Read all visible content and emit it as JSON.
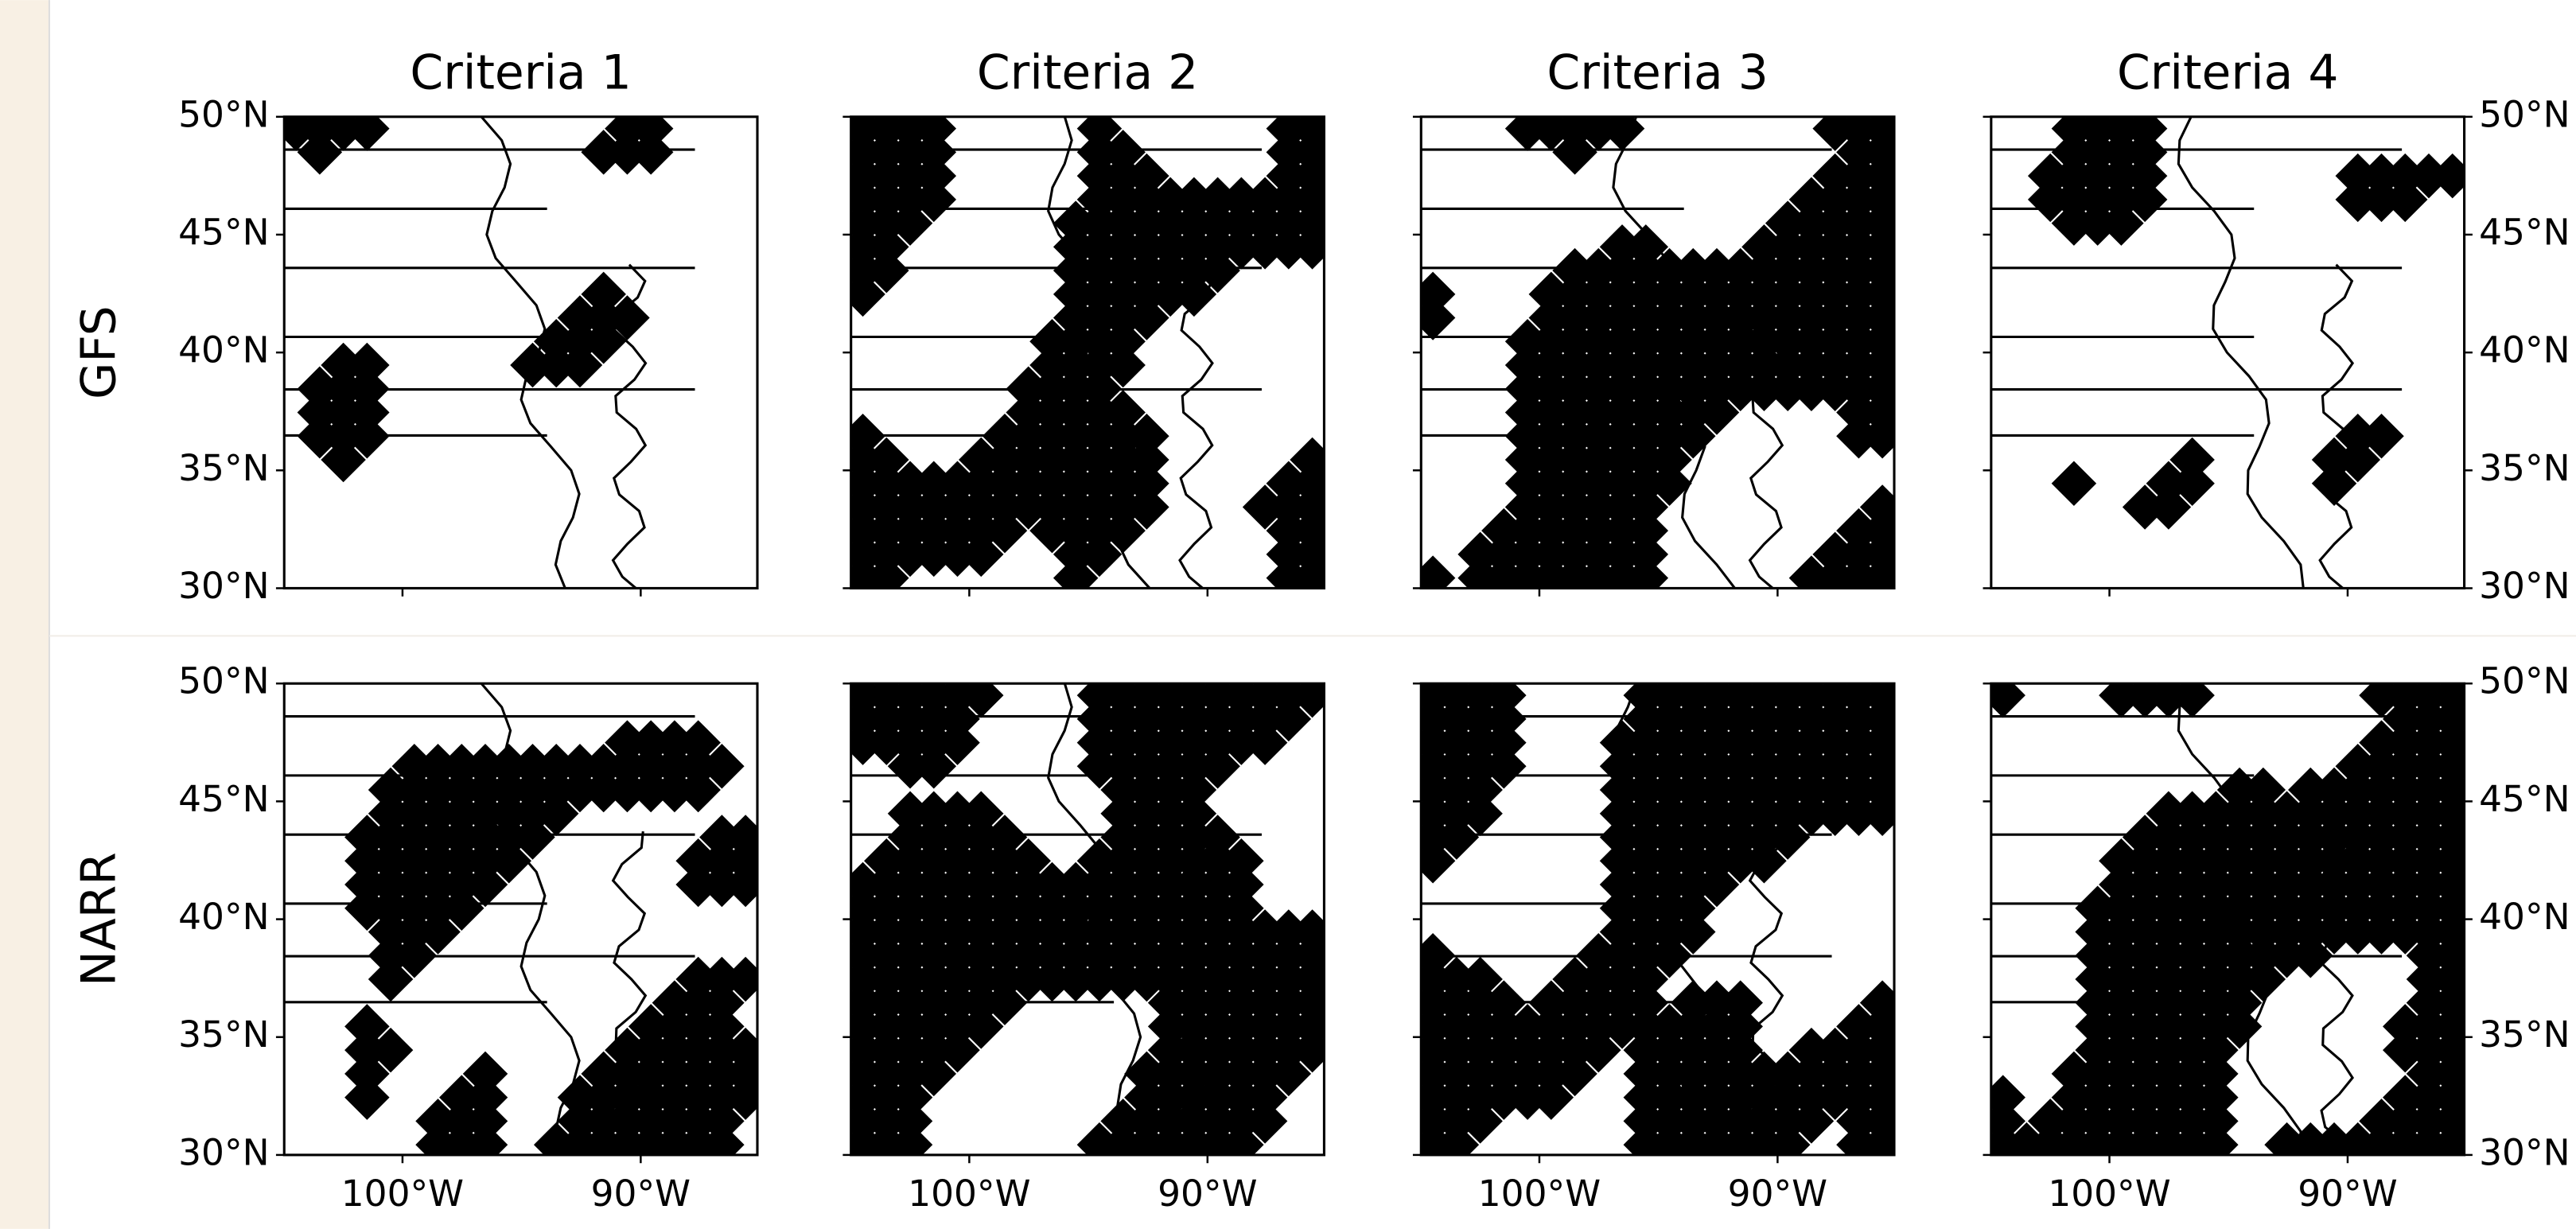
{
  "figure": {
    "columns": [
      "Criteria 1",
      "Criteria 2",
      "Criteria 3",
      "Criteria 4"
    ],
    "rows": [
      "GFS",
      "NARR"
    ],
    "lat_labels": [
      "50°N",
      "45°N",
      "40°N",
      "35°N",
      "30°N"
    ],
    "lon_labels": [
      "100°W",
      "90°W"
    ]
  }
}
